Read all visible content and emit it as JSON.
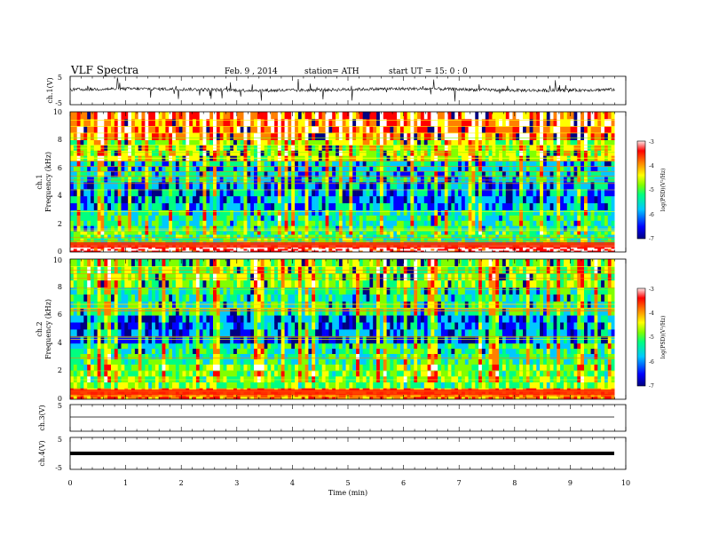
{
  "header": {
    "title": "VLF  Spectra",
    "date": "Feb. 9  , 2014",
    "station": "station= ATH",
    "start": "start  UT  =    15: 0   : 0"
  },
  "chart_data": [
    {
      "type": "line",
      "name": "ch1-waveform",
      "ylabel": "ch.1(V)",
      "ylim": [
        -5,
        5
      ],
      "yticks": [
        "5",
        "-5"
      ],
      "xlim": [
        0,
        10
      ],
      "series": [
        {
          "values": "noisy waveform around 0 V with spikes",
          "x_range": [
            0,
            9.8
          ]
        }
      ]
    },
    {
      "type": "heatmap",
      "name": "ch1-spectrogram",
      "ylabel_channel": "ch.1",
      "ylabel": "Frequency  (kHz)",
      "ylim": [
        0,
        10
      ],
      "yticks": [
        "0",
        "2",
        "4",
        "6",
        "8",
        "10"
      ],
      "xlim": [
        0,
        10
      ],
      "colorbar": {
        "label": "log(PSD)(V²/Hz)",
        "range": [
          -7,
          -3
        ],
        "ticks": [
          "-3",
          "-4",
          "-5",
          "-6",
          "-7"
        ],
        "colormap": [
          "#000080",
          "#0000ff",
          "#00c8ff",
          "#00ff80",
          "#80ff00",
          "#ffff00",
          "#ff8000",
          "#ff0000",
          "#ffffff"
        ]
      },
      "bands": [
        {
          "f": [
            0.0,
            0.5
          ],
          "logpsd": -3.2
        },
        {
          "f": [
            0.5,
            1.5
          ],
          "logpsd": -5.3
        },
        {
          "f": [
            1.5,
            3.0
          ],
          "logpsd": -5.6
        },
        {
          "f": [
            3.0,
            5.0
          ],
          "logpsd": -6.2
        },
        {
          "f": [
            5.0,
            6.5
          ],
          "logpsd": -5.8
        },
        {
          "f": [
            6.5,
            8.0
          ],
          "logpsd": -4.8
        },
        {
          "f": [
            8.0,
            10.0
          ],
          "logpsd": -3.8
        }
      ]
    },
    {
      "type": "heatmap",
      "name": "ch2-spectrogram",
      "ylabel_channel": "ch.2",
      "ylabel": "Frequency  (kHz)",
      "ylim": [
        0,
        10
      ],
      "yticks": [
        "0",
        "2",
        "4",
        "6",
        "8",
        "10"
      ],
      "xlim": [
        0,
        10
      ],
      "colorbar": {
        "label": "log(PSD)(V²/Hz)",
        "range": [
          -7,
          -3
        ],
        "ticks": [
          "-3",
          "-4",
          "-5",
          "-6",
          "-7"
        ]
      },
      "bands": [
        {
          "f": [
            0.0,
            0.8
          ],
          "logpsd": -4.0
        },
        {
          "f": [
            0.8,
            2.5
          ],
          "logpsd": -5.1
        },
        {
          "f": [
            2.5,
            4.0
          ],
          "logpsd": -5.5
        },
        {
          "f": [
            4.0,
            6.0
          ],
          "logpsd": -6.3
        },
        {
          "f": [
            6.0,
            8.0
          ],
          "logpsd": -5.6
        },
        {
          "f": [
            8.0,
            10.0
          ],
          "logpsd": -5.0
        }
      ]
    },
    {
      "type": "line",
      "name": "ch3-waveform",
      "ylabel": "ch.3(V)",
      "ylim": [
        -5,
        5
      ],
      "yticks": [
        "5"
      ],
      "xlim": [
        0,
        10
      ],
      "series": [
        {
          "values": "flat line near -1 V",
          "x_range": [
            0,
            9.8
          ]
        }
      ]
    },
    {
      "type": "line",
      "name": "ch4-waveform",
      "ylabel": "ch.4(V)",
      "ylim": [
        -5,
        5
      ],
      "yticks": [
        "5",
        "-5"
      ],
      "xlim": [
        0,
        10
      ],
      "series": [
        {
          "values": "thick flat line near 0 V",
          "x_range": [
            0,
            9.8
          ]
        }
      ]
    }
  ],
  "xaxis": {
    "label": "Time  (min)",
    "ticks": [
      "0",
      "1",
      "2",
      "3",
      "4",
      "5",
      "6",
      "7",
      "8",
      "9",
      "10"
    ]
  }
}
